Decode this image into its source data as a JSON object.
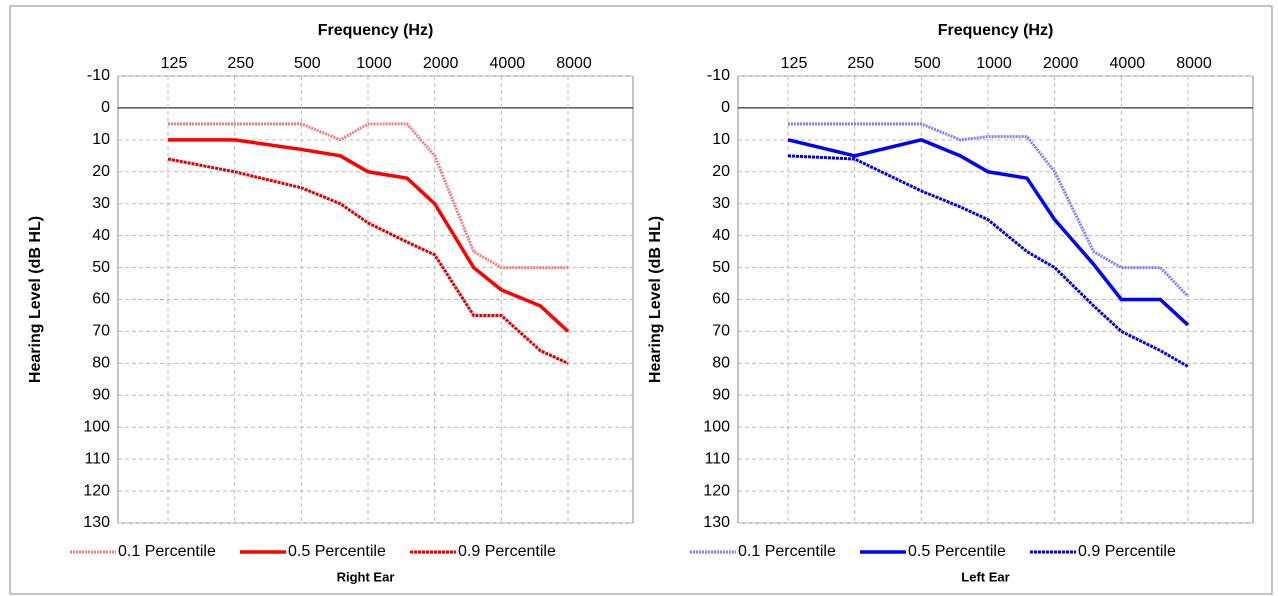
{
  "chart_data": [
    {
      "type": "line",
      "title": "Right Ear",
      "x_label": "Frequency (Hz)",
      "y_label": "Hearing Level (dB HL)",
      "xscale": "log",
      "y_inverted": true,
      "grid": true,
      "x": [
        125,
        250,
        500,
        750,
        1000,
        1500,
        2000,
        3000,
        4000,
        6000,
        8000
      ],
      "xlim": [
        125,
        8000
      ],
      "xticks": [
        125,
        250,
        500,
        1000,
        2000,
        4000,
        8000
      ],
      "ylim": [
        -10,
        130
      ],
      "yticks": [
        -10,
        0,
        10,
        20,
        30,
        40,
        50,
        60,
        70,
        80,
        90,
        100,
        110,
        120,
        130
      ],
      "series": [
        {
          "name": "0.1 Percentile",
          "color": "#f08080",
          "style": "dotted",
          "values": [
            5,
            5,
            5,
            10,
            5,
            5,
            15,
            45,
            50,
            50,
            50
          ]
        },
        {
          "name": "0.5 Percentile",
          "color": "#ff0000",
          "style": "solid",
          "values": [
            10,
            10,
            13,
            15,
            20,
            22,
            30,
            50,
            57,
            62,
            70
          ]
        },
        {
          "name": "0.9 Percentile",
          "color": "#e00000",
          "style": "double",
          "values": [
            16,
            20,
            25,
            30,
            36,
            42,
            46,
            65,
            65,
            76,
            80
          ]
        }
      ]
    },
    {
      "type": "line",
      "title": "Left Ear",
      "x_label": "Frequency (Hz)",
      "y_label": "Hearing Level (dB HL)",
      "xscale": "log",
      "y_inverted": true,
      "grid": true,
      "x": [
        125,
        250,
        500,
        750,
        1000,
        1500,
        2000,
        3000,
        4000,
        6000,
        8000
      ],
      "xlim": [
        125,
        8000
      ],
      "xticks": [
        125,
        250,
        500,
        1000,
        2000,
        4000,
        8000
      ],
      "ylim": [
        -10,
        130
      ],
      "yticks": [
        -10,
        0,
        10,
        20,
        30,
        40,
        50,
        60,
        70,
        80,
        90,
        100,
        110,
        120,
        130
      ],
      "series": [
        {
          "name": "0.1 Percentile",
          "color": "#7f7fff",
          "style": "dotted",
          "values": [
            5,
            5,
            5,
            10,
            9,
            9,
            20,
            45,
            50,
            50,
            59
          ]
        },
        {
          "name": "0.5 Percentile",
          "color": "#0000ff",
          "style": "solid",
          "values": [
            10,
            15,
            10,
            15,
            20,
            22,
            35,
            49,
            60,
            60,
            68
          ]
        },
        {
          "name": "0.9 Percentile",
          "color": "#0000e0",
          "style": "double",
          "values": [
            15,
            16,
            26,
            31,
            35,
            45,
            50,
            62,
            70,
            76,
            81
          ]
        }
      ]
    }
  ]
}
